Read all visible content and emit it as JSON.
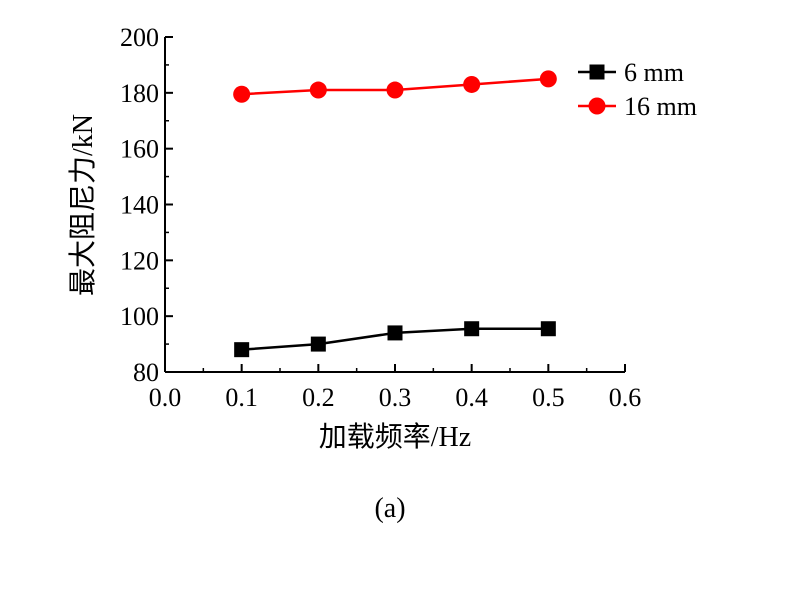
{
  "chart_data": {
    "type": "line",
    "x": [
      0.1,
      0.2,
      0.3,
      0.4,
      0.5
    ],
    "xlabel": "加载频率/Hz",
    "ylabel": "最大阻尼力/kN",
    "xlim": [
      0.0,
      0.6
    ],
    "ylim": [
      80,
      200
    ],
    "xticks": [
      "0.0",
      "0.1",
      "0.2",
      "0.3",
      "0.4",
      "0.5",
      "0.6"
    ],
    "yticks": [
      "80",
      "100",
      "120",
      "140",
      "160",
      "180",
      "200"
    ],
    "grid": false,
    "legend_position": "top-right",
    "series": [
      {
        "name": "6 mm",
        "marker": "square",
        "color": "#000000",
        "values": [
          88,
          90,
          94,
          95.5,
          95.5
        ]
      },
      {
        "name": "16 mm",
        "marker": "circle",
        "color": "#ff0000",
        "values": [
          179.5,
          181,
          181,
          183,
          185
        ]
      }
    ]
  },
  "caption": "(a)"
}
